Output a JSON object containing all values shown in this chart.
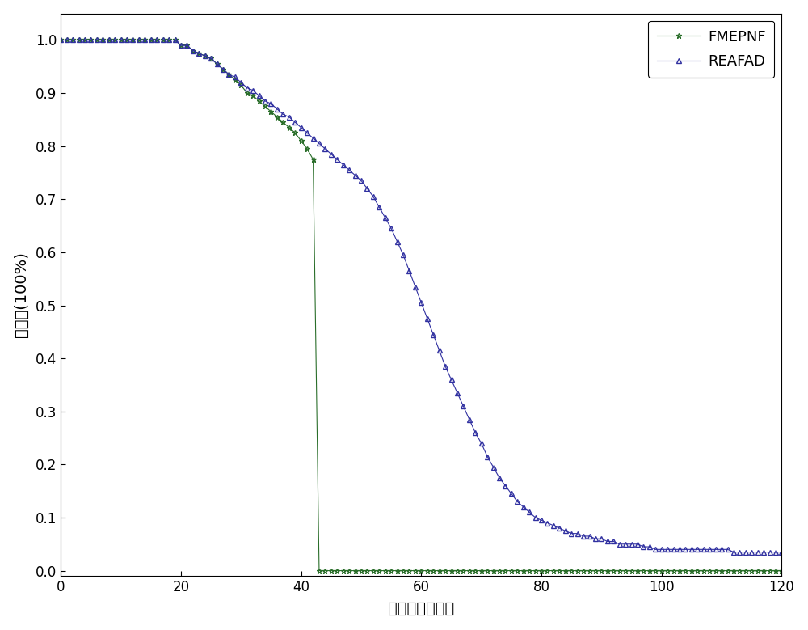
{
  "title": "",
  "xlabel": "迭代次数（次）",
  "ylabel": "成功率(100%)",
  "xlim": [
    0,
    120
  ],
  "ylim": [
    -0.01,
    1.05
  ],
  "xticks": [
    0,
    20,
    40,
    60,
    80,
    100,
    120
  ],
  "yticks": [
    0,
    0.1,
    0.2,
    0.3,
    0.4,
    0.5,
    0.6,
    0.7,
    0.8,
    0.9,
    1.0
  ],
  "fmepnf_color": "#2a6e2a",
  "reafad_color": "#3030a0",
  "background": "#ffffff",
  "legend_labels": [
    "FMEPNF",
    "REAFAD"
  ],
  "fmepnf_x": [
    0,
    1,
    2,
    3,
    4,
    5,
    6,
    7,
    8,
    9,
    10,
    11,
    12,
    13,
    14,
    15,
    16,
    17,
    18,
    19,
    20,
    21,
    22,
    23,
    24,
    25,
    26,
    27,
    28,
    29,
    30,
    31,
    32,
    33,
    34,
    35,
    36,
    37,
    38,
    39,
    40,
    41,
    42,
    43,
    44,
    45,
    46,
    47,
    48,
    49,
    50,
    51,
    52,
    53,
    54,
    55,
    56,
    57,
    58,
    59,
    60,
    61,
    62,
    63,
    64,
    65,
    66,
    67,
    68,
    69,
    70,
    71,
    72,
    73,
    74,
    75,
    76,
    77,
    78,
    79,
    80,
    81,
    82,
    83,
    84,
    85,
    86,
    87,
    88,
    89,
    90,
    91,
    92,
    93,
    94,
    95,
    96,
    97,
    98,
    99,
    100,
    101,
    102,
    103,
    104,
    105,
    106,
    107,
    108,
    109,
    110,
    111,
    112,
    113,
    114,
    115,
    116,
    117,
    118,
    119,
    120
  ],
  "fmepnf_y": [
    1.0,
    1.0,
    1.0,
    1.0,
    1.0,
    1.0,
    1.0,
    1.0,
    1.0,
    1.0,
    1.0,
    1.0,
    1.0,
    1.0,
    1.0,
    1.0,
    1.0,
    1.0,
    1.0,
    1.0,
    0.99,
    0.99,
    0.98,
    0.975,
    0.97,
    0.965,
    0.955,
    0.945,
    0.935,
    0.925,
    0.915,
    0.9,
    0.895,
    0.885,
    0.875,
    0.865,
    0.855,
    0.845,
    0.835,
    0.825,
    0.81,
    0.795,
    0.775,
    0.0,
    0.0,
    0.0,
    0.0,
    0.0,
    0.0,
    0.0,
    0.0,
    0.0,
    0.0,
    0.0,
    0.0,
    0.0,
    0.0,
    0.0,
    0.0,
    0.0,
    0.0,
    0.0,
    0.0,
    0.0,
    0.0,
    0.0,
    0.0,
    0.0,
    0.0,
    0.0,
    0.0,
    0.0,
    0.0,
    0.0,
    0.0,
    0.0,
    0.0,
    0.0,
    0.0,
    0.0,
    0.0,
    0.0,
    0.0,
    0.0,
    0.0,
    0.0,
    0.0,
    0.0,
    0.0,
    0.0,
    0.0,
    0.0,
    0.0,
    0.0,
    0.0,
    0.0,
    0.0,
    0.0,
    0.0,
    0.0,
    0.0,
    0.0,
    0.0,
    0.0,
    0.0,
    0.0,
    0.0,
    0.0,
    0.0,
    0.0,
    0.0,
    0.0,
    0.0,
    0.0,
    0.0,
    0.0,
    0.0,
    0.0,
    0.0,
    0.0,
    0.0
  ],
  "reafad_x": [
    0,
    1,
    2,
    3,
    4,
    5,
    6,
    7,
    8,
    9,
    10,
    11,
    12,
    13,
    14,
    15,
    16,
    17,
    18,
    19,
    20,
    21,
    22,
    23,
    24,
    25,
    26,
    27,
    28,
    29,
    30,
    31,
    32,
    33,
    34,
    35,
    36,
    37,
    38,
    39,
    40,
    41,
    42,
    43,
    44,
    45,
    46,
    47,
    48,
    49,
    50,
    51,
    52,
    53,
    54,
    55,
    56,
    57,
    58,
    59,
    60,
    61,
    62,
    63,
    64,
    65,
    66,
    67,
    68,
    69,
    70,
    71,
    72,
    73,
    74,
    75,
    76,
    77,
    78,
    79,
    80,
    81,
    82,
    83,
    84,
    85,
    86,
    87,
    88,
    89,
    90,
    91,
    92,
    93,
    94,
    95,
    96,
    97,
    98,
    99,
    100,
    101,
    102,
    103,
    104,
    105,
    106,
    107,
    108,
    109,
    110,
    111,
    112,
    113,
    114,
    115,
    116,
    117,
    118,
    119,
    120
  ],
  "reafad_y": [
    1.0,
    1.0,
    1.0,
    1.0,
    1.0,
    1.0,
    1.0,
    1.0,
    1.0,
    1.0,
    1.0,
    1.0,
    1.0,
    1.0,
    1.0,
    1.0,
    1.0,
    1.0,
    1.0,
    1.0,
    0.99,
    0.99,
    0.98,
    0.975,
    0.97,
    0.965,
    0.955,
    0.945,
    0.935,
    0.93,
    0.92,
    0.91,
    0.905,
    0.895,
    0.885,
    0.88,
    0.87,
    0.86,
    0.855,
    0.845,
    0.835,
    0.825,
    0.815,
    0.805,
    0.795,
    0.785,
    0.775,
    0.765,
    0.755,
    0.745,
    0.735,
    0.72,
    0.705,
    0.685,
    0.665,
    0.645,
    0.62,
    0.595,
    0.565,
    0.535,
    0.505,
    0.475,
    0.445,
    0.415,
    0.385,
    0.36,
    0.335,
    0.31,
    0.285,
    0.26,
    0.24,
    0.215,
    0.195,
    0.175,
    0.16,
    0.145,
    0.13,
    0.12,
    0.11,
    0.1,
    0.095,
    0.09,
    0.085,
    0.08,
    0.075,
    0.07,
    0.07,
    0.065,
    0.065,
    0.06,
    0.06,
    0.055,
    0.055,
    0.05,
    0.05,
    0.05,
    0.05,
    0.045,
    0.045,
    0.04,
    0.04,
    0.04,
    0.04,
    0.04,
    0.04,
    0.04,
    0.04,
    0.04,
    0.04,
    0.04,
    0.04,
    0.04,
    0.035,
    0.035,
    0.035,
    0.035,
    0.035,
    0.035,
    0.035,
    0.035,
    0.035
  ]
}
